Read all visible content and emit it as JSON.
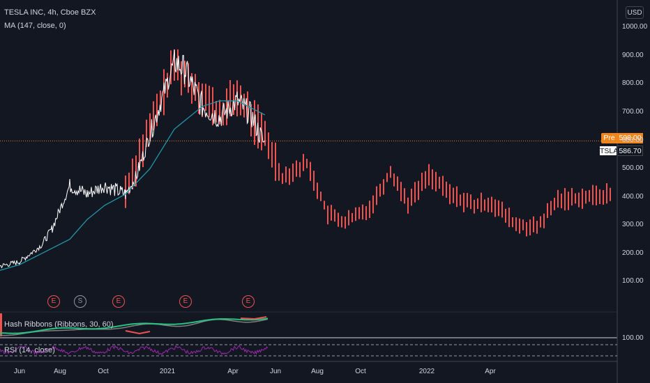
{
  "header": {
    "symbol_line": "TESLA INC, 4h, Cboe BZX",
    "ma_line": "MA (147, close, 0)"
  },
  "currency_button": "USD",
  "price_tags": {
    "pre_label": "Pre",
    "pre_value": "598.00",
    "last_label": "TSLA",
    "last_value": "586.70"
  },
  "indicators": {
    "hash_ribbons": "Hash Ribbons (Ribbons, 30, 60)",
    "rsi": "RSI (14, close)",
    "rsi_top_label": "100.00"
  },
  "events": [
    {
      "label": "E",
      "kind": "earnings"
    },
    {
      "label": "S",
      "kind": "split"
    },
    {
      "label": "E",
      "kind": "earnings"
    },
    {
      "label": "E",
      "kind": "earnings"
    },
    {
      "label": "E",
      "kind": "earnings"
    }
  ],
  "chart_data": {
    "type": "line",
    "title": "TESLA INC, 4h, Cboe BZX",
    "y_axis_ticks": [
      "1000.00",
      "900.00",
      "800.00",
      "700.00",
      "600.00",
      "500.00",
      "400.00",
      "300.00",
      "200.00",
      "100.00"
    ],
    "x_axis_ticks": [
      "Jun",
      "Aug",
      "Oct",
      "2021",
      "Apr",
      "Jun",
      "Aug",
      "Oct",
      "2022",
      "Apr"
    ],
    "ylim": [
      0,
      1060
    ],
    "pre_market_price": 598.0,
    "last_price": 586.7,
    "colors": {
      "price": "#ffffff",
      "projection": "#ef5350",
      "ma": "#2196a8",
      "pre_line": "#f0851b",
      "hash_green": "#26c281",
      "hash_red": "#ef5350",
      "rsi": "#9c27b0"
    },
    "price_series": {
      "name": "TSLA",
      "x": [
        "2020-05",
        "2020-06",
        "2020-07",
        "2020-07b",
        "2020-08",
        "2020-09",
        "2020-10",
        "2020-11",
        "2020-11b",
        "2020-12",
        "2021-01",
        "2021-01b",
        "2021-02",
        "2021-03",
        "2021-04",
        "2021-04b",
        "2021-05"
      ],
      "values": [
        155,
        170,
        230,
        290,
        440,
        410,
        440,
        410,
        470,
        620,
        880,
        850,
        720,
        680,
        740,
        690,
        580
      ]
    },
    "ma_series": {
      "name": "MA (147, close, 0)",
      "x": [
        "2020-05",
        "2020-06",
        "2020-07",
        "2020-08",
        "2020-09",
        "2020-10",
        "2020-11",
        "2020-12",
        "2021-01",
        "2021-02",
        "2021-03",
        "2021-04",
        "2021-05"
      ],
      "values": [
        140,
        160,
        200,
        250,
        320,
        370,
        410,
        500,
        640,
        720,
        740,
        740,
        690
      ]
    },
    "projection_series": {
      "x": [
        "2020-11",
        "2020-12",
        "2021-01",
        "2021-02",
        "2021-03",
        "2021-04",
        "2021-05",
        "2021-06",
        "2021-07",
        "2021-08",
        "2021-09",
        "2021-10",
        "2021-11",
        "2021-12",
        "2022-01",
        "2022-02",
        "2022-03",
        "2022-04",
        "2022-05",
        "2022-06",
        "2022-07",
        "2022-08",
        "2022-09"
      ],
      "values": [
        420,
        640,
        870,
        760,
        690,
        760,
        610,
        470,
        520,
        340,
        310,
        360,
        490,
        380,
        480,
        410,
        370,
        380,
        300,
        290,
        390,
        400,
        410
      ]
    }
  }
}
